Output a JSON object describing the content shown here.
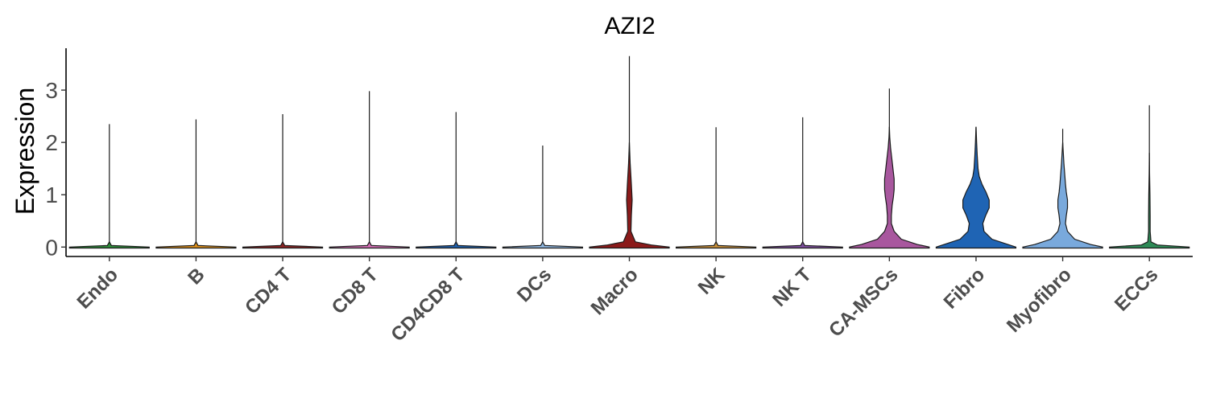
{
  "chart_data": {
    "type": "violin",
    "title": "AZI2",
    "xlabel": "",
    "ylabel": "Expression",
    "ylim": [
      -0.18,
      3.8
    ],
    "yticks": [
      "0",
      "1",
      "2",
      "3"
    ],
    "grid": false,
    "legend": "none",
    "categories": [
      "Endo",
      "B",
      "CD4 T",
      "CD8 T",
      "CD4CD8 T",
      "DCs",
      "Macro",
      "NK",
      "NK T",
      "CA-MSCs",
      "Fibro",
      "Myofibro",
      "ECCs"
    ],
    "max_values": [
      2.35,
      2.44,
      2.54,
      2.98,
      2.58,
      1.94,
      3.65,
      2.29,
      2.48,
      3.03,
      2.29,
      2.26,
      2.71
    ],
    "density": [
      [
        [
          0,
          1.0
        ],
        [
          0.03,
          0.05
        ],
        [
          0.1,
          0.0
        ]
      ],
      [
        [
          0,
          1.0
        ],
        [
          0.03,
          0.05
        ],
        [
          0.1,
          0.0
        ]
      ],
      [
        [
          0,
          1.0
        ],
        [
          0.03,
          0.05
        ],
        [
          0.1,
          0.0
        ]
      ],
      [
        [
          0,
          1.0
        ],
        [
          0.03,
          0.05
        ],
        [
          0.1,
          0.0
        ]
      ],
      [
        [
          0,
          1.0
        ],
        [
          0.03,
          0.05
        ],
        [
          0.1,
          0.0
        ]
      ],
      [
        [
          0,
          1.0
        ],
        [
          0.03,
          0.05
        ],
        [
          0.1,
          0.0
        ]
      ],
      [
        [
          0,
          1.0
        ],
        [
          0.04,
          0.55
        ],
        [
          0.1,
          0.15
        ],
        [
          0.3,
          0.04
        ],
        [
          0.6,
          0.05
        ],
        [
          0.9,
          0.07
        ],
        [
          1.2,
          0.05
        ],
        [
          1.6,
          0.02
        ],
        [
          2.0,
          0.0
        ]
      ],
      [
        [
          0,
          1.0
        ],
        [
          0.03,
          0.05
        ],
        [
          0.1,
          0.0
        ]
      ],
      [
        [
          0,
          1.0
        ],
        [
          0.03,
          0.05
        ],
        [
          0.1,
          0.0
        ]
      ],
      [
        [
          0,
          1.0
        ],
        [
          0.05,
          0.7
        ],
        [
          0.15,
          0.3
        ],
        [
          0.3,
          0.12
        ],
        [
          0.45,
          0.05
        ],
        [
          0.6,
          0.05
        ],
        [
          0.8,
          0.07
        ],
        [
          0.95,
          0.1
        ],
        [
          1.1,
          0.12
        ],
        [
          1.3,
          0.12
        ],
        [
          1.5,
          0.09
        ],
        [
          1.7,
          0.06
        ],
        [
          1.9,
          0.03
        ],
        [
          2.1,
          0.01
        ],
        [
          2.3,
          0.0
        ]
      ],
      [
        [
          0,
          1.0
        ],
        [
          0.05,
          0.8
        ],
        [
          0.15,
          0.4
        ],
        [
          0.3,
          0.2
        ],
        [
          0.45,
          0.17
        ],
        [
          0.6,
          0.24
        ],
        [
          0.75,
          0.33
        ],
        [
          0.9,
          0.33
        ],
        [
          1.05,
          0.25
        ],
        [
          1.2,
          0.15
        ],
        [
          1.35,
          0.08
        ],
        [
          1.5,
          0.05
        ],
        [
          1.75,
          0.03
        ],
        [
          2.0,
          0.015
        ],
        [
          2.3,
          0.0
        ]
      ],
      [
        [
          0,
          1.0
        ],
        [
          0.05,
          0.7
        ],
        [
          0.15,
          0.3
        ],
        [
          0.3,
          0.12
        ],
        [
          0.45,
          0.07
        ],
        [
          0.6,
          0.09
        ],
        [
          0.75,
          0.12
        ],
        [
          0.9,
          0.12
        ],
        [
          1.05,
          0.09
        ],
        [
          1.2,
          0.07
        ],
        [
          1.4,
          0.05
        ],
        [
          1.6,
          0.03
        ],
        [
          1.8,
          0.015
        ],
        [
          2.0,
          0.0
        ]
      ],
      [
        [
          0,
          1.0
        ],
        [
          0.04,
          0.2
        ],
        [
          0.1,
          0.04
        ],
        [
          0.3,
          0.02
        ],
        [
          0.6,
          0.02
        ],
        [
          1.0,
          0.015
        ],
        [
          1.4,
          0.005
        ],
        [
          1.8,
          0.0
        ]
      ]
    ],
    "colors": [
      "#2e8b3a",
      "#d98c1a",
      "#8b2323",
      "#d26eb4",
      "#1f5faa",
      "#8fb6df",
      "#8b1a1a",
      "#c78f3a",
      "#7f4f9f",
      "#a8579e",
      "#1f64b4",
      "#79a9dc",
      "#2e8b57"
    ]
  }
}
